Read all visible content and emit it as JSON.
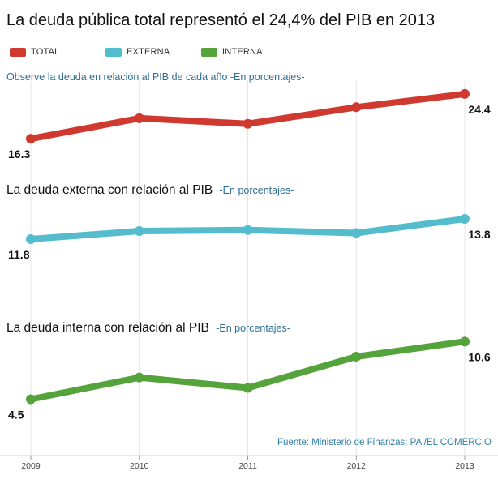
{
  "title": "La deuda pública total representó el 24,4% del PIB en 2013",
  "legend": [
    {
      "label": "TOTAL",
      "color": "#d0392f"
    },
    {
      "label": "EXTERNA",
      "color": "#53bccd"
    },
    {
      "label": "INTERNA",
      "color": "#55a33b"
    }
  ],
  "subtitle": "Observe la deuda en relación al PIB de cada año -En porcentajes-",
  "sections": {
    "externa": {
      "title": "La deuda externa con relación al PIB",
      "subtitle": "-En porcentajes-"
    },
    "interna": {
      "title": "La deuda interna con relación al PIB",
      "subtitle": "-En porcentajes-"
    }
  },
  "source": "Fuente: Ministerio de Finanzas; PA /EL COMERCIO",
  "chart_data": [
    {
      "type": "line",
      "x": [
        "2009",
        "2010",
        "2011",
        "2012",
        "2013"
      ],
      "series": [
        {
          "name": "TOTAL",
          "color": "#d0392f",
          "values": [
            16.3,
            20.0,
            19.0,
            22.0,
            24.4
          ]
        }
      ],
      "data_labels": [
        {
          "x": "2009",
          "text": "16.3"
        },
        {
          "x": "2013",
          "text": "24.4"
        }
      ],
      "ylim": [
        15,
        26
      ]
    },
    {
      "type": "line",
      "x": [
        "2009",
        "2010",
        "2011",
        "2012",
        "2013"
      ],
      "series": [
        {
          "name": "EXTERNA",
          "color": "#53bccd",
          "values": [
            11.8,
            12.6,
            12.7,
            12.4,
            13.8
          ]
        }
      ],
      "data_labels": [
        {
          "x": "2009",
          "text": "11.8"
        },
        {
          "x": "2013",
          "text": "13.8"
        }
      ],
      "ylim": [
        11,
        15
      ]
    },
    {
      "type": "line",
      "x": [
        "2009",
        "2010",
        "2011",
        "2012",
        "2013"
      ],
      "series": [
        {
          "name": "INTERNA",
          "color": "#55a33b",
          "values": [
            4.5,
            6.8,
            5.7,
            9.0,
            10.6
          ]
        }
      ],
      "data_labels": [
        {
          "x": "2009",
          "text": "4.5"
        },
        {
          "x": "2013",
          "text": "10.6"
        }
      ],
      "ylim": [
        3,
        12
      ]
    }
  ]
}
